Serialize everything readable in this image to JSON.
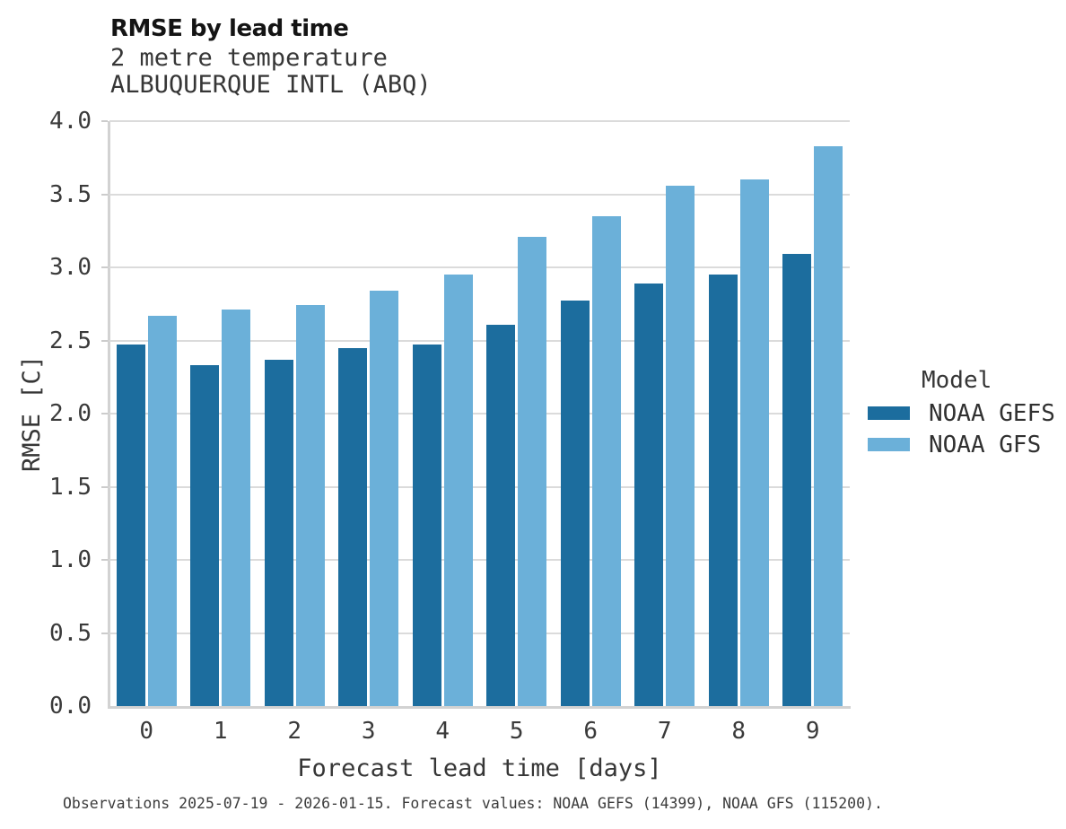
{
  "header": {
    "title": "RMSE by lead time",
    "subtitle_variable": "2 metre temperature",
    "subtitle_station": "ALBUQUERQUE INTL (ABQ)"
  },
  "chart_data": {
    "type": "bar",
    "grouped": true,
    "title": "RMSE by lead time",
    "subtitle": [
      "2 metre temperature",
      "ALBUQUERQUE INTL (ABQ)"
    ],
    "categories": [
      "0",
      "1",
      "2",
      "3",
      "4",
      "5",
      "6",
      "7",
      "8",
      "9"
    ],
    "series": [
      {
        "name": "NOAA GEFS",
        "color": "#1c6d9e",
        "values": [
          2.47,
          2.33,
          2.37,
          2.45,
          2.47,
          2.61,
          2.77,
          2.89,
          2.95,
          3.09
        ]
      },
      {
        "name": "NOAA GFS",
        "color": "#6bb0d9",
        "values": [
          2.67,
          2.71,
          2.74,
          2.84,
          2.95,
          3.21,
          3.35,
          3.56,
          3.6,
          3.83
        ]
      }
    ],
    "xlabel": "Forecast lead time [days]",
    "ylabel": "RMSE [C]",
    "ylim": [
      0,
      4.0
    ],
    "yticks": [
      "0.0",
      "0.5",
      "1.0",
      "1.5",
      "2.0",
      "2.5",
      "3.0",
      "3.5",
      "4.0"
    ],
    "grid": true,
    "legend_position": "right"
  },
  "legend": {
    "title": "Model",
    "entries": [
      {
        "label": "NOAA GEFS",
        "color": "#1c6d9e"
      },
      {
        "label": "NOAA GFS",
        "color": "#6bb0d9"
      }
    ]
  },
  "footer": {
    "note": "Observations 2025-07-19 - 2026-01-15. Forecast values: NOAA GEFS (14399), NOAA GFS (115200)."
  },
  "colors": {
    "gefs_bar": "#1c6d9e",
    "gfs_bar": "#6bb0d9",
    "gridline": "#dbdbdb",
    "spine": "#d2d2d2",
    "text": "#3a3a3a",
    "title_text": "#141414"
  }
}
